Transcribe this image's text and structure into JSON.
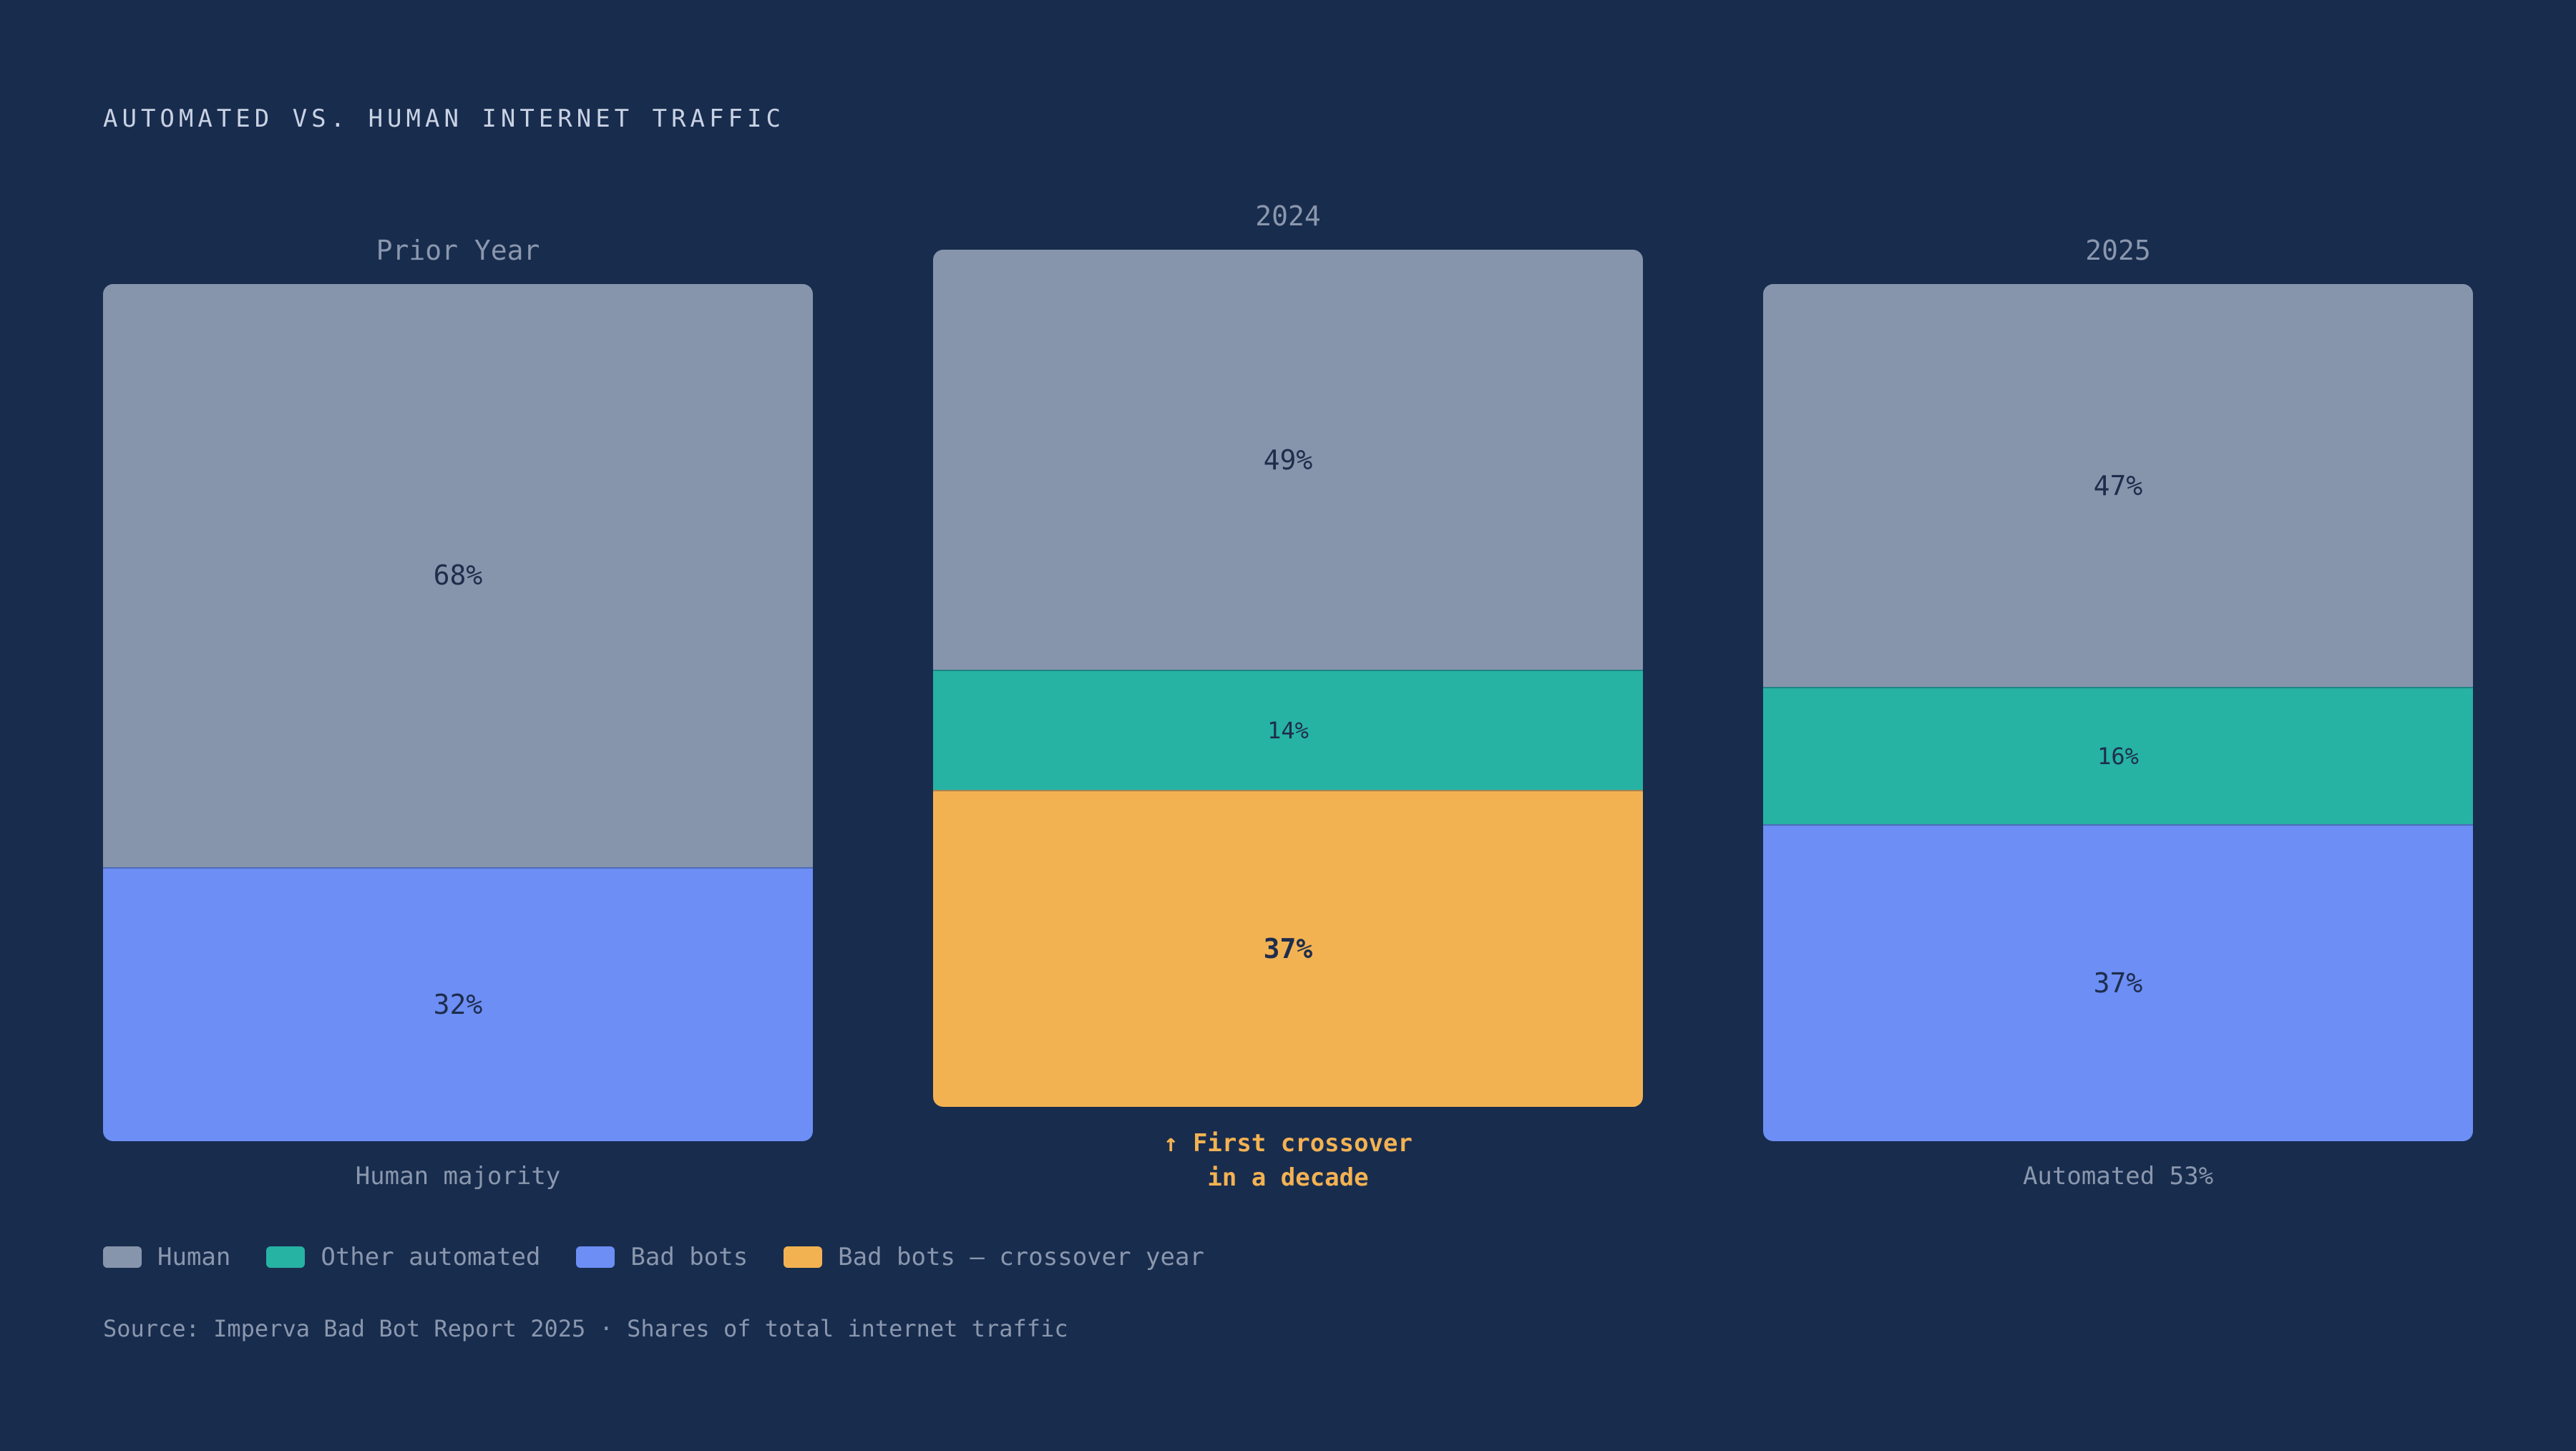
{
  "chart_data": {
    "type": "bar",
    "stacked": true,
    "title": "AUTOMATED VS. HUMAN INTERNET TRAFFIC",
    "unit": "%",
    "categories": [
      "Prior Year",
      "2024",
      "2025"
    ],
    "footers": [
      "Human majority",
      "↑ First crossover\nin a decade",
      "Automated 53%"
    ],
    "columns": [
      {
        "label": "Prior Year",
        "footer": "Human majority",
        "segments": [
          {
            "series": "Human",
            "value": 68,
            "label": "68%"
          },
          {
            "series": "Bad bots",
            "value": 32,
            "label": "32%"
          }
        ]
      },
      {
        "label": "2024",
        "footer_lines": [
          "↑ First crossover",
          "in a decade"
        ],
        "segments": [
          {
            "series": "Human",
            "value": 49,
            "label": "49%"
          },
          {
            "series": "Other automated",
            "value": 14,
            "label": "14%"
          },
          {
            "series": "Bad bots — crossover year",
            "value": 37,
            "label": "37%"
          }
        ]
      },
      {
        "label": "2025",
        "footer": "Automated 53%",
        "segments": [
          {
            "series": "Human",
            "value": 47,
            "label": "47%"
          },
          {
            "series": "Other automated",
            "value": 16,
            "label": "16%"
          },
          {
            "series": "Bad bots",
            "value": 37,
            "label": "37%"
          }
        ]
      }
    ],
    "legend": [
      {
        "name": "Human",
        "color": "#8795ac"
      },
      {
        "name": "Other automated",
        "color": "#26b3a3"
      },
      {
        "name": "Bad bots",
        "color": "#6c8ef5"
      },
      {
        "name": "Bad bots — crossover year",
        "color": "#f3b252"
      }
    ],
    "legend_placement": "bottom-left",
    "grid": false,
    "source": "Source: Imperva Bad Bot Report 2025 · Shares of total internet traffic"
  },
  "colors": {
    "background": "#182c4e",
    "highlight_text": "#f3b252"
  }
}
